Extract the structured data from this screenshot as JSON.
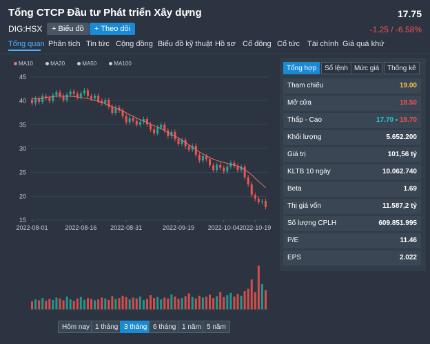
{
  "header": {
    "title": "Tổng CTCP Đầu tư Phát triển Xây dựng",
    "price": "17.75",
    "ticker": "DIG:HSX",
    "change": "-1.25 / -6.58%",
    "chart_button": "+ Biểu đồ",
    "follow_button": "+ Theo dõi"
  },
  "tabs": [
    "Tổng quan",
    "Phân tích",
    "Tin tức",
    "Cộng đồng",
    "Biểu đồ kỹ thuật",
    "Hồ sơ",
    "Cổ đông",
    "Cổ tức",
    "Tài chính",
    "Giá quá khứ"
  ],
  "legend": [
    "MA10",
    "MA20",
    "MA50",
    "MA100"
  ],
  "stats_tabs": [
    "Tổng hợp",
    "Sổ lệnh",
    "Mức giá",
    "Thống kê"
  ],
  "stats": [
    {
      "label": "Tham chiếu",
      "value": "19.00",
      "color": "yellow"
    },
    {
      "label": "Mở cửa",
      "value": "18.50",
      "color": "red"
    },
    {
      "label": "Thấp - Cao",
      "low": "17.70",
      "sep": " - ",
      "high": "18.70"
    },
    {
      "label": "Khối lượng",
      "value": "5.652.200"
    },
    {
      "label": "Giá trị",
      "value": "101,56 tỷ"
    },
    {
      "label": "KLTB 10 ngày",
      "value": "10.062.740"
    },
    {
      "label": "Beta",
      "value": "1.69"
    },
    {
      "label": "Thị giá vốn",
      "value": "11.587,2 tỷ"
    },
    {
      "label": "Số lượng CPLH",
      "value": "609.851.995"
    },
    {
      "label": "P/E",
      "value": "11.46"
    },
    {
      "label": "EPS",
      "value": "2.022"
    }
  ],
  "periods": [
    "Hôm nay",
    "1 tháng",
    "3 tháng",
    "6 tháng",
    "1 năm",
    "5 năm"
  ],
  "colors": {
    "up": "#26a69a",
    "down": "#ef5350",
    "ma": "#e57373",
    "accent": "#1a8ad4"
  },
  "chart_data": {
    "type": "candlestick",
    "y_ticks": [
      "45",
      "40",
      "35",
      "30",
      "25",
      "20",
      "15"
    ],
    "x_ticks": [
      "2022-08-01",
      "2022-08-16",
      "2022-08-31",
      "2022-09-19",
      "2022-10-04",
      "2022-10-19"
    ],
    "ylim": [
      15,
      45
    ],
    "closes": [
      39.5,
      40.5,
      39.8,
      41.0,
      40.6,
      40.0,
      41.2,
      41.8,
      41.0,
      40.2,
      41.3,
      42.0,
      41.5,
      40.8,
      41.6,
      42.2,
      41.0,
      40.5,
      41.1,
      40.0,
      39.5,
      40.2,
      38.8,
      37.5,
      38.6,
      38.0,
      36.8,
      35.5,
      36.4,
      35.8,
      35.0,
      35.6,
      36.2,
      35.1,
      34.0,
      33.2,
      34.4,
      35.0,
      33.8,
      32.6,
      33.5,
      32.0,
      31.0,
      31.8,
      30.5,
      29.8,
      30.6,
      28.7,
      27.5,
      28.4,
      27.8,
      26.5,
      25.5,
      26.6,
      26.0,
      25.2,
      26.2,
      27.0,
      26.4,
      25.5,
      26.2,
      24.0,
      22.5,
      20.3,
      19.5,
      18.8,
      19.0,
      17.75
    ],
    "volumes": [
      18,
      22,
      20,
      25,
      19,
      23,
      21,
      26,
      24,
      20,
      28,
      22,
      19,
      24,
      27,
      21,
      25,
      23,
      20,
      22,
      26,
      24,
      21,
      29,
      23,
      25,
      30,
      27,
      22,
      26,
      24,
      28,
      21,
      23,
      31,
      25,
      27,
      22,
      26,
      24,
      33,
      28,
      23,
      25,
      29,
      35,
      27,
      24,
      30,
      26,
      28,
      32,
      25,
      29,
      38,
      27,
      31,
      36,
      28,
      34,
      30,
      40,
      45,
      65,
      38,
      95,
      55,
      42
    ],
    "ma": [
      40.5,
      40.5,
      40.4,
      40.6,
      40.7,
      40.8,
      40.9,
      41.0,
      41.0,
      41.0,
      41.0,
      41.0,
      40.9,
      40.8,
      40.7,
      40.6,
      40.5,
      40.3,
      40.1,
      39.9,
      39.7,
      39.4,
      39.1,
      38.8,
      38.5,
      38.2,
      37.9,
      37.5,
      37.1,
      36.8,
      36.4,
      36.1,
      35.8,
      35.5,
      35.1,
      34.8,
      34.5,
      34.2,
      33.8,
      33.4,
      33.0,
      32.6,
      32.2,
      31.8,
      31.3,
      30.8,
      30.3,
      29.8,
      29.3,
      28.9,
      28.5,
      28.1,
      27.8,
      27.5,
      27.3,
      27.1,
      26.9,
      26.7,
      26.5,
      26.3,
      26.0,
      25.6,
      25.1,
      24.5,
      23.8,
      23.1,
      22.5,
      21.8
    ]
  }
}
